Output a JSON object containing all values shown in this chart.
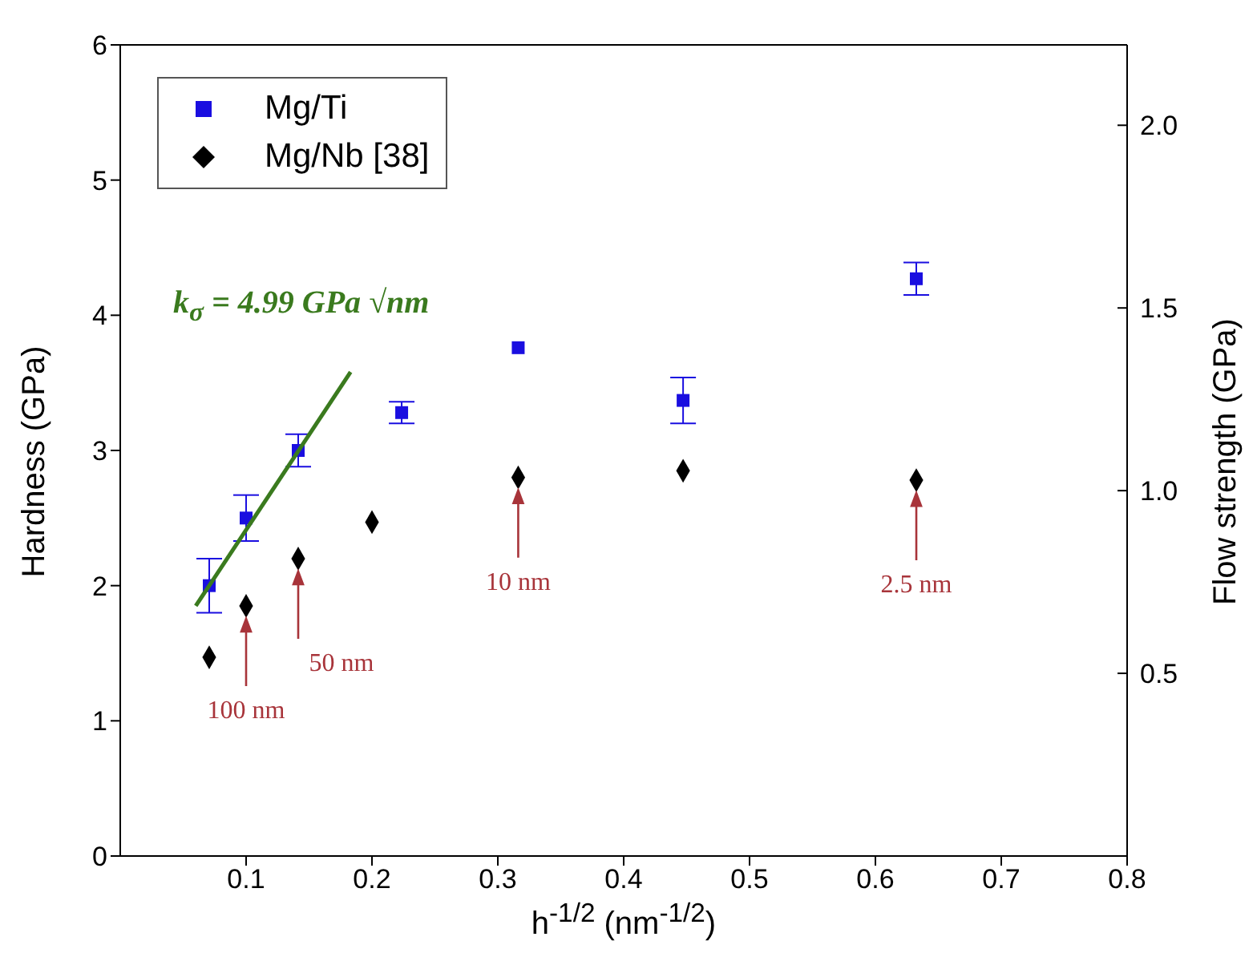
{
  "chart_data": {
    "type": "scatter",
    "xlabel": "h$^{-1/2}$ (nm$^{-1/2}$)",
    "ylabel": "Hardness (GPa)",
    "y2label": "Flow strength (GPa)",
    "xlim": [
      0,
      0.8
    ],
    "xticks": [
      0.1,
      0.2,
      0.3,
      0.4,
      0.5,
      0.6,
      0.7,
      0.8
    ],
    "ylim": [
      0,
      6
    ],
    "yticks": [
      0,
      1,
      2,
      3,
      4,
      5,
      6
    ],
    "y2lim": [
      0,
      2.22
    ],
    "y2ticks": [
      0.5,
      {
        "value": 1,
        "label": "1.0"
      },
      1.5,
      {
        "value": 2,
        "label": "2.0"
      }
    ],
    "legend": "top left",
    "series": [
      {
        "name": "Mg/Ti",
        "color": "#1a0ee0",
        "marker": "square",
        "x": [
          0.0707,
          0.1,
          0.1414,
          0.2236,
          0.3162,
          0.4472,
          0.6325
        ],
        "values": [
          2.0,
          2.5,
          3.0,
          3.28,
          3.76,
          3.37,
          4.27
        ],
        "errors": [
          0.2,
          0.17,
          0.12,
          0.08,
          null,
          0.17,
          0.12
        ]
      },
      {
        "name": "Mg/Nb [38]",
        "color": "#000000",
        "marker": "diamond",
        "x": [
          0.0707,
          0.1,
          0.1414,
          0.2,
          0.3162,
          0.4472,
          0.6325
        ],
        "values": [
          1.47,
          1.85,
          2.2,
          2.47,
          2.8,
          2.85,
          2.78
        ]
      },
      {
        "type": "line",
        "color": "#3a7a1e",
        "marker": "none",
        "x": [
          0.06,
          0.183
        ],
        "values": [
          1.85,
          3.58
        ]
      }
    ],
    "annotations": [
      "k$_{σ}$ = 4.99 GPa √nm",
      {
        "text": "100 nm",
        "x": 0.1,
        "y": 1.85
      },
      {
        "text": "50 nm",
        "x": 0.1414,
        "y": 2.2
      },
      {
        "text": "10 nm",
        "x": 0.3162,
        "y": 2.8
      },
      {
        "text": "2.5 nm",
        "x": 0.6325,
        "y": 2.78
      }
    ]
  }
}
